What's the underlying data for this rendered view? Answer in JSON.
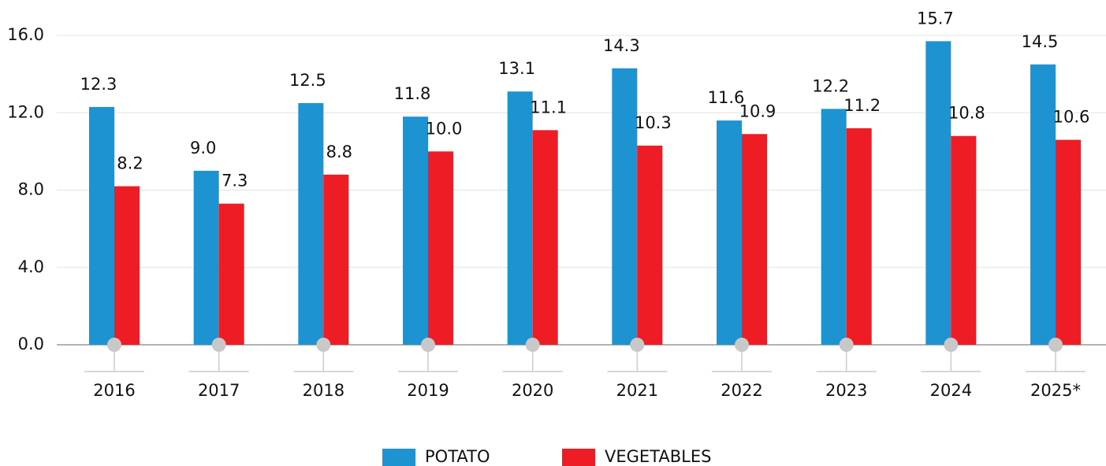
{
  "chart_data": {
    "type": "bar",
    "categories": [
      "2016",
      "2017",
      "2018",
      "2019",
      "2020",
      "2021",
      "2022",
      "2023",
      "2024",
      "2025*"
    ],
    "series": [
      {
        "name": "POTATO",
        "color": "#1e93d2",
        "values": [
          12.3,
          9.0,
          12.5,
          11.8,
          13.1,
          14.3,
          11.6,
          12.2,
          15.7,
          14.5
        ],
        "value_labels": [
          "12.3",
          "9.0",
          "12.5",
          "11.8",
          "13.1",
          "14.3",
          "11.6",
          "12.2",
          "15.7",
          "14.5"
        ]
      },
      {
        "name": "VEGETABLES",
        "color": "#ee1c25",
        "values": [
          8.2,
          7.3,
          8.8,
          10.0,
          11.1,
          10.3,
          10.9,
          11.2,
          10.8,
          10.6
        ],
        "value_labels": [
          "8.2",
          "7.3",
          "8.8",
          "10.0",
          "11.1",
          "10.3",
          "10.9",
          "11.2",
          "10.8",
          "10.6"
        ]
      }
    ],
    "ylim": [
      0,
      16
    ],
    "yticks": [
      {
        "value": 0,
        "label": "0.0"
      },
      {
        "value": 4,
        "label": "4.0"
      },
      {
        "value": 8,
        "label": "8.0"
      },
      {
        "value": 12,
        "label": "12.0"
      },
      {
        "value": 16,
        "label": "16.0"
      }
    ],
    "grid": true,
    "legend": "bottom"
  }
}
